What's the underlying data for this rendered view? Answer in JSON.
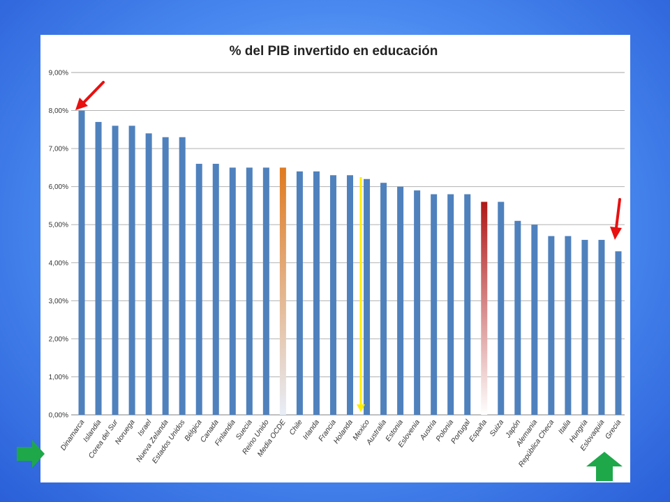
{
  "chart_data": {
    "type": "bar",
    "title": "% del PIB invertido en educación",
    "categories": [
      "Dinamarca",
      "Islandia",
      "Corea del Sur",
      "Noruega",
      "Israel",
      "Nueva Zelanda",
      "Estados Unidos",
      "Bélgica",
      "Canada",
      "Finlandia",
      "Suecia",
      "Reino Unido",
      "Media OCDE",
      "Chile",
      "Irlanda",
      "Francia",
      "Holanda",
      "Mexico",
      "Australia",
      "Estonia",
      "Eslovenia",
      "Austria",
      "Polonia",
      "Portugal",
      "España",
      "Suiza",
      "Japón",
      "Alemania",
      "República Checa",
      "Italia",
      "Hungria",
      "Eslovaquia",
      "Grecia"
    ],
    "values": [
      8.0,
      7.7,
      7.6,
      7.6,
      7.4,
      7.3,
      7.3,
      6.6,
      6.6,
      6.5,
      6.5,
      6.5,
      6.5,
      6.4,
      6.4,
      6.3,
      6.3,
      6.2,
      6.1,
      6.0,
      5.9,
      5.8,
      5.8,
      5.8,
      5.6,
      5.6,
      5.1,
      5.0,
      4.7,
      4.7,
      4.6,
      4.6,
      4.3
    ],
    "yticks": [
      "0,00%",
      "1,00%",
      "2,00%",
      "3,00%",
      "4,00%",
      "5,00%",
      "6,00%",
      "7,00%",
      "8,00%",
      "9,00%"
    ],
    "ylim": [
      0,
      9
    ],
    "grid": true,
    "highlights": {
      "Media OCDE": "#e07a1f",
      "España": "#b01818"
    },
    "colors": {
      "bar": "#4f81bd",
      "arrow_red": "#e81010",
      "arrow_green": "#1ea84a",
      "arrow_yellow": "#ffee00"
    }
  }
}
